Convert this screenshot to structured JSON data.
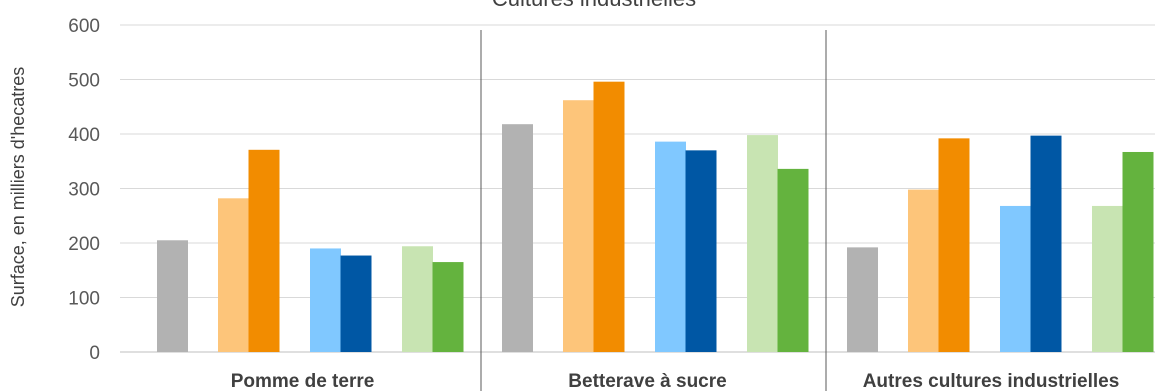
{
  "chart_data": {
    "type": "bar",
    "title": "Cultures industrielles",
    "ylabel": "Surface, en milliers d'hecatres",
    "xlabel": "",
    "ylim": [
      0,
      600
    ],
    "yticks": [
      0,
      100,
      200,
      300,
      400,
      500,
      600
    ],
    "grid": true,
    "categories": [
      "Pomme de terre",
      "Betterave à sucre",
      "Autres cultures industrielles"
    ],
    "series": [
      {
        "color": "#b2b2b2",
        "values": [
          205,
          418,
          192
        ]
      },
      {
        "color": "#fdc57a",
        "values": [
          282,
          462,
          298
        ]
      },
      {
        "color": "#f28c00",
        "values": [
          371,
          496,
          392
        ]
      },
      {
        "color": "#80c8ff",
        "values": [
          190,
          386,
          268
        ]
      },
      {
        "color": "#0057a4",
        "values": [
          177,
          370,
          397
        ]
      },
      {
        "color": "#c8e4b2",
        "values": [
          194,
          398,
          268
        ]
      },
      {
        "color": "#64b33e",
        "values": [
          165,
          336,
          367
        ]
      }
    ]
  }
}
